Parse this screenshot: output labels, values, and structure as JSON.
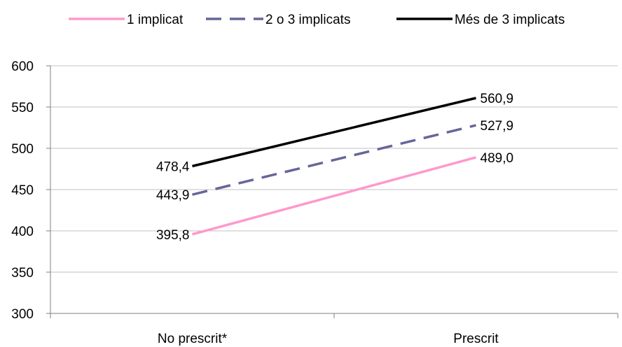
{
  "chart_data": {
    "type": "line",
    "categories": [
      "No prescrit*",
      "Prescrit"
    ],
    "series": [
      {
        "name": "1 implicat",
        "values": [
          395.8,
          489.0
        ],
        "labels": [
          "395,8",
          "489,0"
        ],
        "color": "#ff99cc",
        "dash": "solid"
      },
      {
        "name": "2 o 3 implicats",
        "values": [
          443.9,
          527.9
        ],
        "labels": [
          "443,9",
          "527,9"
        ],
        "color": "#666699",
        "dash": "dashed"
      },
      {
        "name": "Més de 3 implicats",
        "values": [
          478.4,
          560.9
        ],
        "labels": [
          "478,4",
          "560,9"
        ],
        "color": "#000000",
        "dash": "solid"
      }
    ],
    "yticks": [
      "300",
      "350",
      "400",
      "450",
      "500",
      "550",
      "600"
    ],
    "ylim": [
      300,
      600
    ],
    "grid": true,
    "legend_position": "top",
    "title": "",
    "xlabel": "",
    "ylabel": ""
  }
}
